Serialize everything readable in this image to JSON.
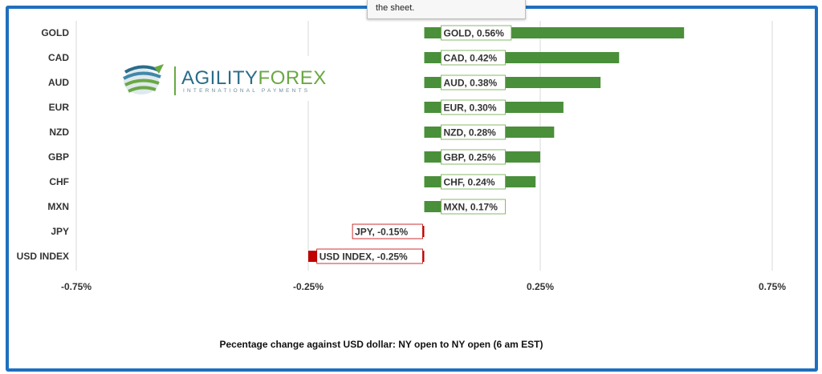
{
  "tooltip": {
    "text": "the sheet."
  },
  "logo": {
    "word_a": "AGILITY",
    "word_b": "FOREX",
    "tagline": "INTERNATIONAL PAYMENTS"
  },
  "colors": {
    "positive": "#4a8f3a",
    "negative": "#c00000",
    "frame": "#1f6fbf"
  },
  "chart_data": {
    "type": "bar",
    "orientation": "horizontal",
    "categories": [
      "GOLD",
      "CAD",
      "AUD",
      "EUR",
      "NZD",
      "GBP",
      "CHF",
      "MXN",
      "JPY",
      "USD INDEX"
    ],
    "values": [
      0.56,
      0.42,
      0.38,
      0.3,
      0.28,
      0.25,
      0.24,
      0.17,
      -0.15,
      -0.25
    ],
    "data_labels": [
      "GOLD, 0.56%",
      "CAD, 0.42%",
      "AUD, 0.38%",
      "EUR, 0.30%",
      "NZD, 0.28%",
      "GBP, 0.25%",
      "CHF, 0.24%",
      "MXN, 0.17%",
      "JPY, -0.15%",
      "USD INDEX, -0.25%"
    ],
    "xlim": [
      -0.75,
      0.75
    ],
    "ticks": [
      -0.75,
      -0.25,
      0.25,
      0.75
    ],
    "tick_labels": [
      "-0.75%",
      "-0.25%",
      "0.25%",
      "0.75%"
    ],
    "grid": true,
    "xlabel": "Pecentage change against USD dollar:  NY open to NY open  (6 am EST)"
  }
}
